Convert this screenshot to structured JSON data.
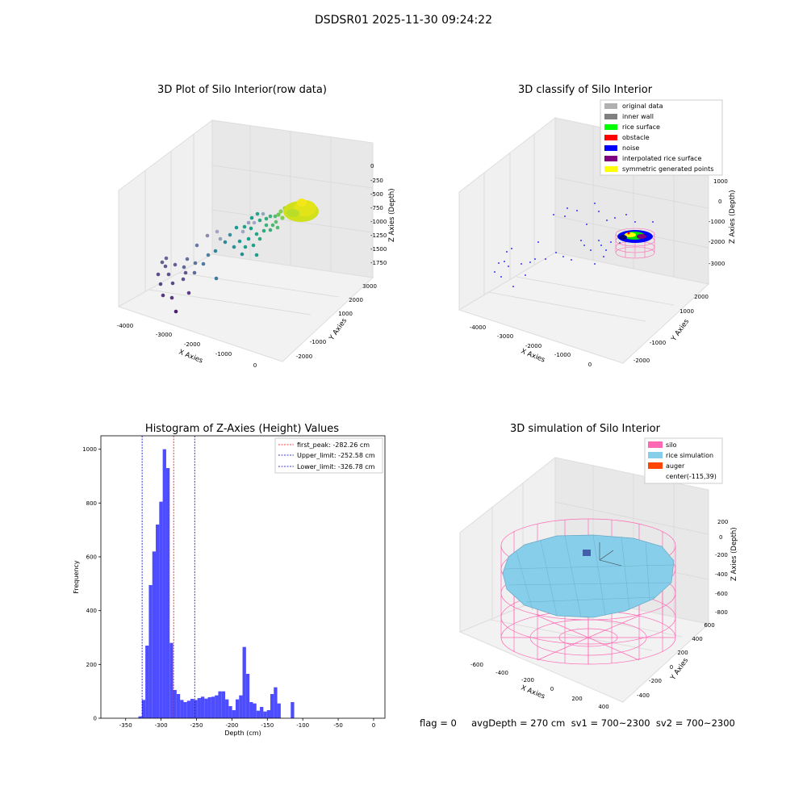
{
  "figure": {
    "suptitle": "DSDSR01 2025-11-30 09:24:22",
    "footer": "flag = 0     avgDepth = 270 cm  sv1 = 700~2300  sv2 = 700~2300"
  },
  "colors": {
    "hist_bar": "#4d4dff",
    "first_peak": "#ff0000",
    "limits": "#0000cc",
    "silo": "#ff69b4",
    "rice_simulation": "#87ceeb",
    "auger": "#ff4500",
    "rice_surface": "#00ff00",
    "obstacle": "#ff0000",
    "noise": "#0000ff",
    "interpolated": "#800080",
    "symmetric": "#ffff00",
    "original": "#b0b0b0",
    "inner_wall": "#808080"
  },
  "chart_data": [
    {
      "type": "scatter",
      "title": "3D Plot of Silo Interior(row data)",
      "xlabel": "X Axies",
      "ylabel": "Y Axies",
      "zlabel": "Z Axies (Depth)",
      "x_ticks": [
        "-4000",
        "-3000",
        "-2000",
        "-1000",
        "0"
      ],
      "y_ticks": [
        "-2000",
        "-1000",
        "1000",
        "2000",
        "3000"
      ],
      "z_ticks": [
        "0",
        "-250",
        "-500",
        "-750",
        "-1000",
        "-1250",
        "-1500",
        "-1750"
      ]
    },
    {
      "type": "scatter",
      "title": "3D classify of Silo Interior",
      "xlabel": "X Axies",
      "ylabel": "Y Axies",
      "zlabel": "Z Axies (Depth)",
      "x_ticks": [
        "-4000",
        "-3000",
        "-2000",
        "-1000",
        "0"
      ],
      "y_ticks": [
        "-2000",
        "-1000",
        "1000",
        "2000"
      ],
      "z_ticks": [
        "1000",
        "0",
        "-1000",
        "-2000",
        "-3000"
      ],
      "legend": [
        "original data",
        "inner wall",
        "rice surface",
        "obstacle",
        "noise",
        "interpolated rice surface",
        "symmetric generated points"
      ],
      "legend_location": "top-right"
    },
    {
      "type": "bar",
      "title": "Histogram of Z-Axies (Height) Values",
      "xlabel": "Depth (cm)",
      "ylabel": "Frequency",
      "xlim": [
        -385,
        16
      ],
      "ylim": [
        0,
        1050
      ],
      "x_ticks": [
        -350,
        -300,
        -250,
        -200,
        -150,
        -100,
        -50,
        0
      ],
      "y_ticks": [
        0,
        200,
        400,
        600,
        800,
        1000
      ],
      "bin_width": 4.9,
      "bins": [
        [
          -332,
          7
        ],
        [
          -327.1,
          68
        ],
        [
          -322.2,
          270
        ],
        [
          -317.3,
          495
        ],
        [
          -312.4,
          620
        ],
        [
          -307.5,
          720
        ],
        [
          -302.6,
          805
        ],
        [
          -297.7,
          1000
        ],
        [
          -292.8,
          930
        ],
        [
          -287.9,
          280
        ],
        [
          -283,
          105
        ],
        [
          -278.1,
          90
        ],
        [
          -273.2,
          68
        ],
        [
          -268.3,
          60
        ],
        [
          -263.4,
          65
        ],
        [
          -258.5,
          72
        ],
        [
          -253.6,
          68
        ],
        [
          -248.7,
          75
        ],
        [
          -243.8,
          80
        ],
        [
          -238.9,
          73
        ],
        [
          -234,
          78
        ],
        [
          -229.1,
          80
        ],
        [
          -224.2,
          85
        ],
        [
          -219.3,
          100
        ],
        [
          -214.4,
          100
        ],
        [
          -209.5,
          70
        ],
        [
          -204.6,
          45
        ],
        [
          -199.7,
          30
        ],
        [
          -194.8,
          70
        ],
        [
          -189.9,
          85
        ],
        [
          -185,
          265
        ],
        [
          -180.1,
          165
        ],
        [
          -175.2,
          60
        ],
        [
          -170.3,
          55
        ],
        [
          -165.4,
          28
        ],
        [
          -160.5,
          42
        ],
        [
          -155.6,
          25
        ],
        [
          -150.7,
          30
        ],
        [
          -145.8,
          90
        ],
        [
          -140.9,
          115
        ],
        [
          -136,
          55
        ],
        [
          -117,
          60
        ]
      ],
      "lines": [
        {
          "label": "first_peak: -282.26 cm",
          "value": -282.26,
          "color_key": "first_peak"
        },
        {
          "label": "Upper_limit: -252.58 cm",
          "value": -252.58,
          "color_key": "limits"
        },
        {
          "label": "Lower_limit: -326.78 cm",
          "value": -326.78,
          "color_key": "limits"
        }
      ],
      "legend_location": "top-right"
    },
    {
      "type": "scatter",
      "title": "3D simulation of Silo Interior",
      "xlabel": "X Axies",
      "ylabel": "Y Axies",
      "zlabel": "Z Axies (Depth)",
      "x_ticks": [
        "-600",
        "-400",
        "-200",
        "0",
        "200",
        "400"
      ],
      "y_ticks": [
        "-400",
        "-200",
        "0",
        "200",
        "400",
        "600"
      ],
      "z_ticks": [
        "200",
        "0",
        "-200",
        "-400",
        "-600",
        "-800"
      ],
      "legend": [
        "silo",
        "rice simulation",
        "auger",
        "center(-115,39)"
      ],
      "legend_location": "top-right"
    }
  ]
}
